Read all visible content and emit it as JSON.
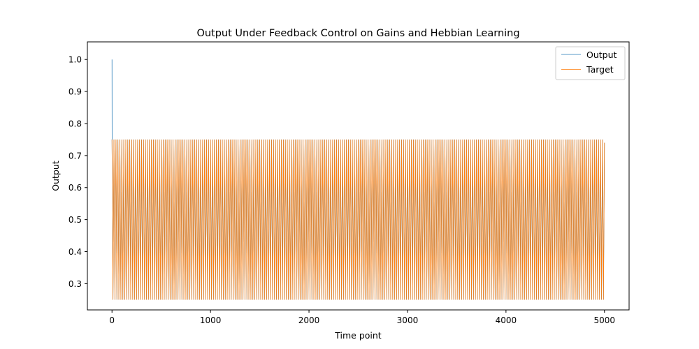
{
  "chart_data": {
    "type": "line",
    "title": "Output Under Feedback Control on Gains and Hebbian Learning",
    "xlabel": "Time point",
    "ylabel": "Output",
    "xlim": [
      -250,
      5250
    ],
    "ylim": [
      0.218,
      1.055
    ],
    "x_ticks": [
      0,
      1000,
      2000,
      3000,
      4000,
      5000
    ],
    "x_tick_labels": [
      "0",
      "1000",
      "2000",
      "3000",
      "4000",
      "5000"
    ],
    "y_ticks": [
      0.3,
      0.4,
      0.5,
      0.6,
      0.7,
      0.8,
      0.9,
      1.0
    ],
    "y_tick_labels": [
      "0.3",
      "0.4",
      "0.5",
      "0.6",
      "0.7",
      "0.8",
      "0.9",
      "1.0"
    ],
    "grid": false,
    "legend_position": "top-right",
    "series": [
      {
        "name": "Output",
        "color": "#1f77b4",
        "description_values": {
          "x_start": 0,
          "x_end": 5000,
          "initial_values": [
            1.0,
            0.88,
            0.75
          ],
          "oscillation_low": 0.25,
          "oscillation_high": 0.75,
          "period": 20,
          "final_value": 0.74
        }
      },
      {
        "name": "Target",
        "color": "#ff7f0e",
        "description_values": {
          "x_start": 0,
          "x_end": 5000,
          "oscillation_low": 0.25,
          "oscillation_high": 0.75,
          "period": 20,
          "final_value": 0.74
        }
      }
    ]
  }
}
